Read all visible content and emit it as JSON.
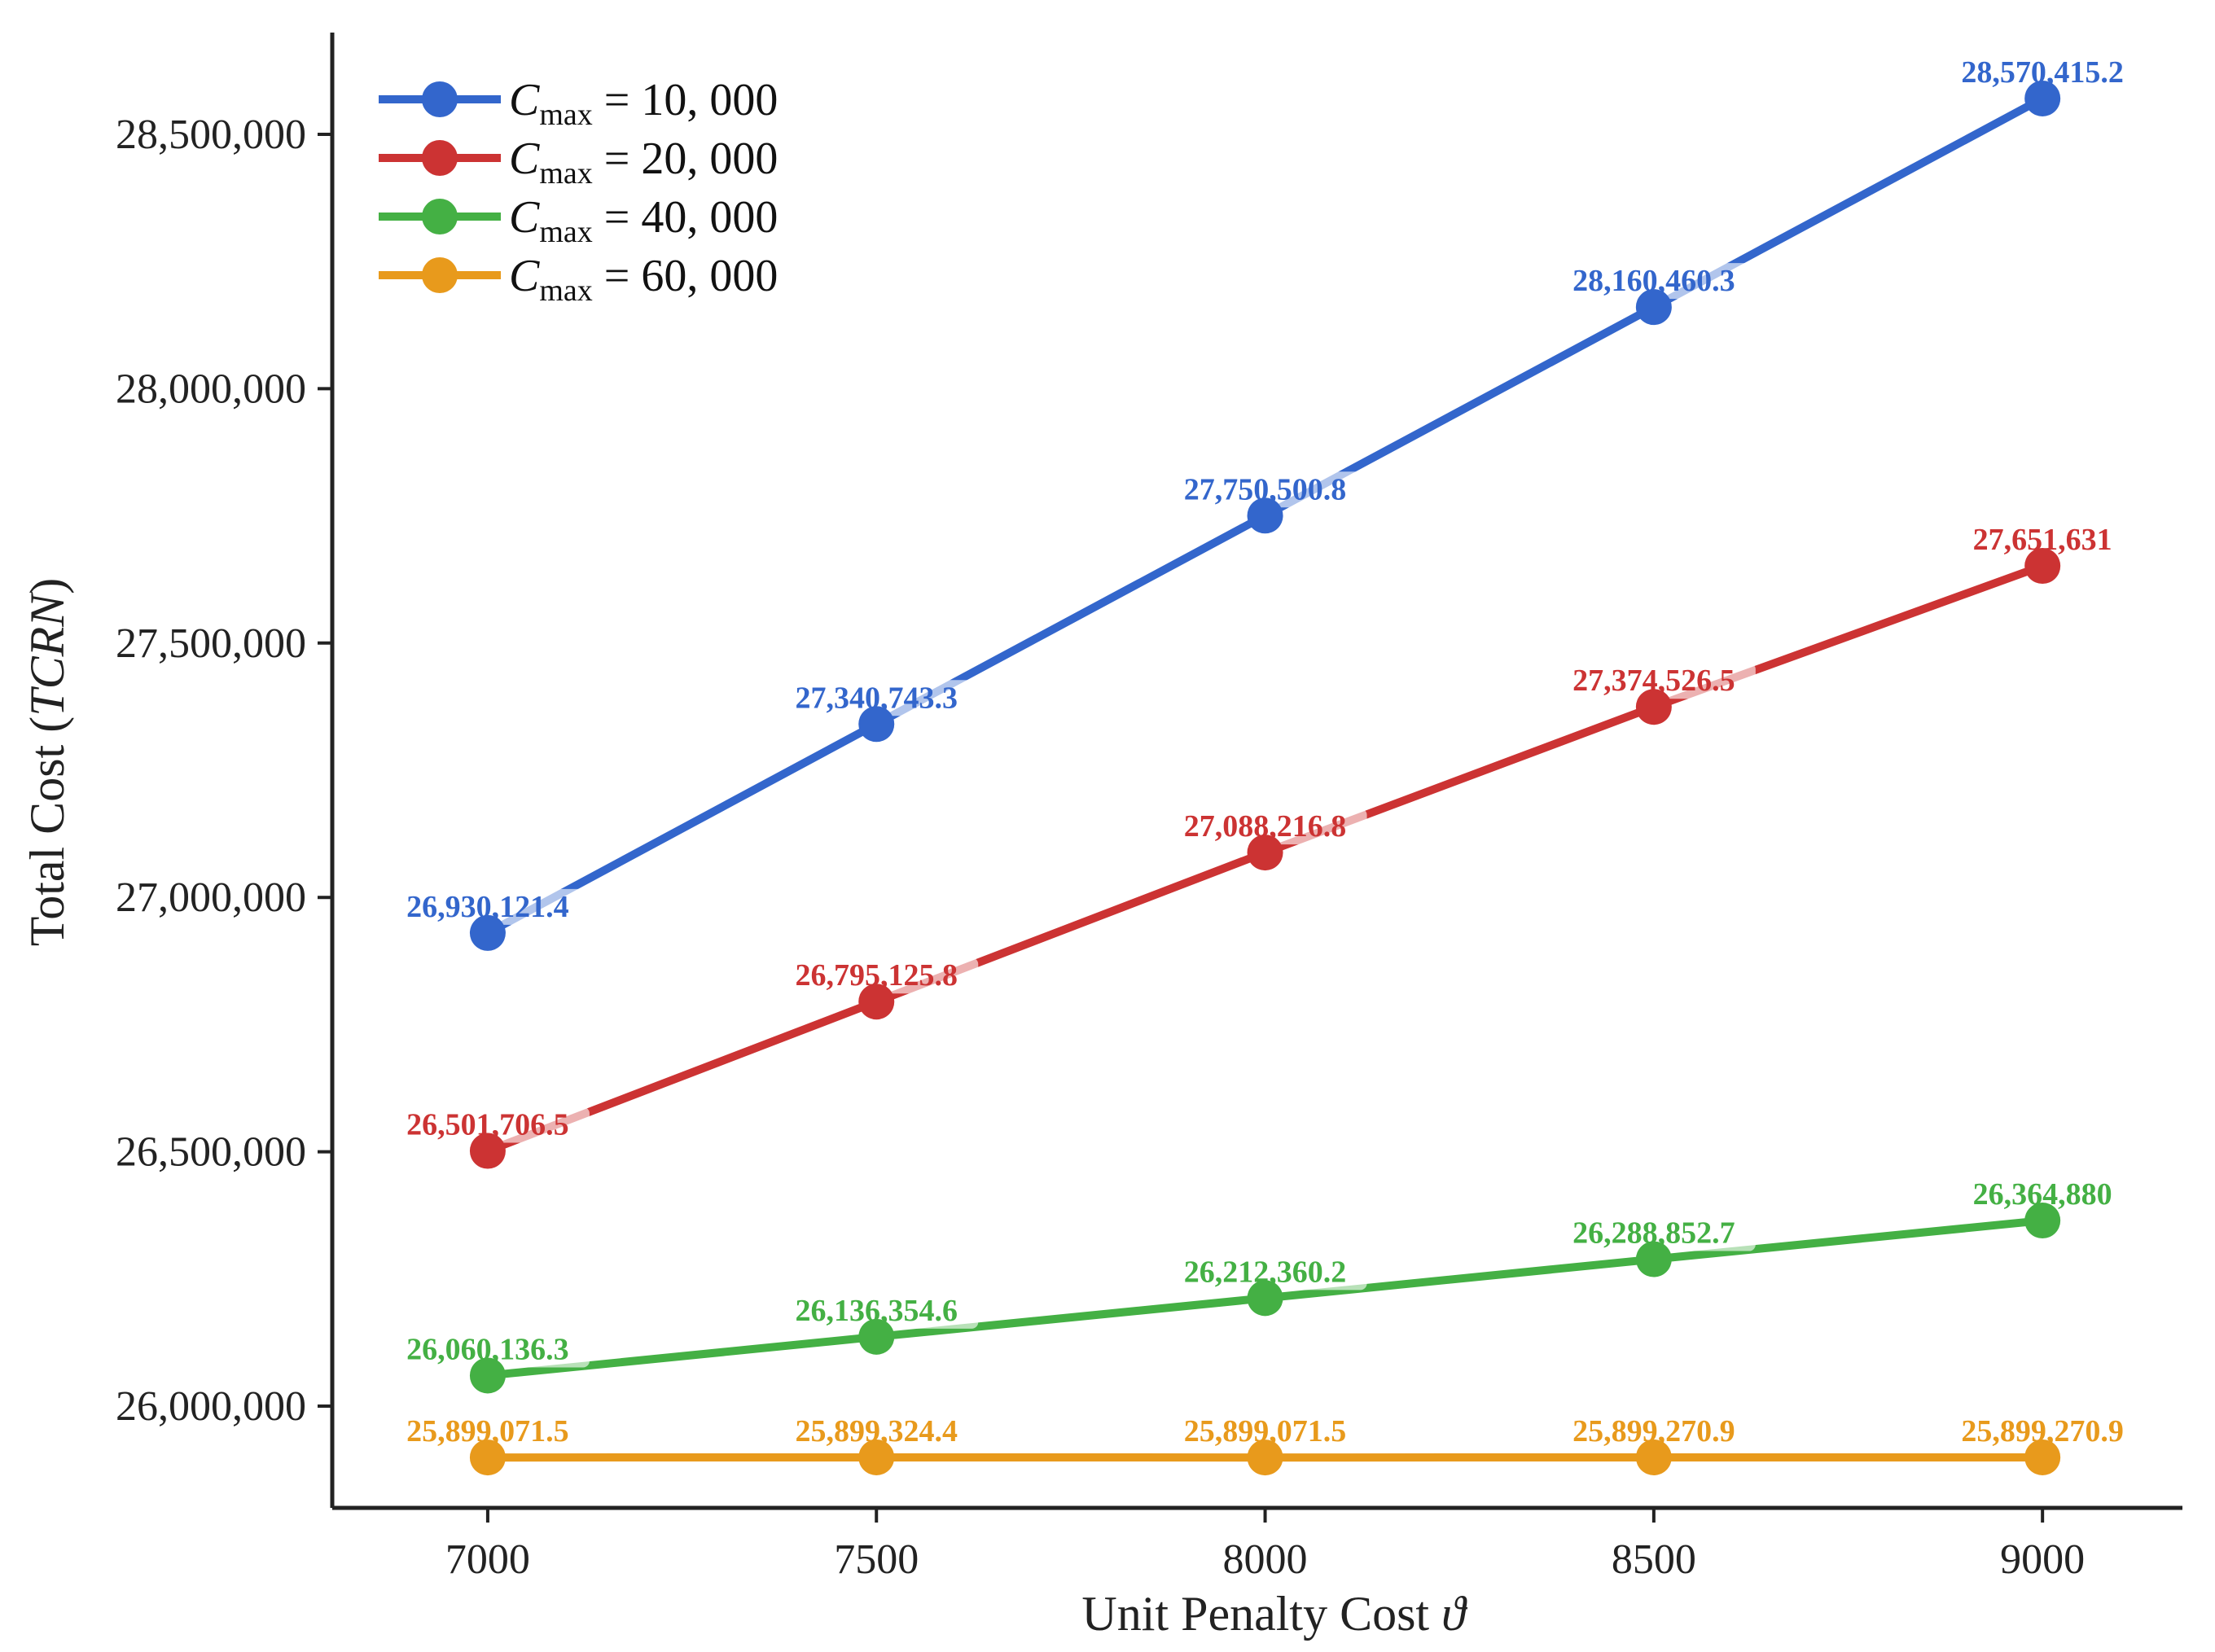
{
  "chart_data": {
    "type": "line",
    "title": "",
    "xlabel": "Unit Penalty Cost",
    "xlabel_symbol": "ϑ",
    "ylabel": "Total Cost",
    "ylabel_symbol": "TCRN",
    "x": [
      7000,
      7500,
      8000,
      8500,
      9000
    ],
    "x_tick_labels": [
      "7000",
      "7500",
      "8000",
      "8500",
      "9000"
    ],
    "xlim": [
      6800,
      9180
    ],
    "ylim": [
      25800000,
      28700000
    ],
    "y_ticks": [
      26000000,
      26500000,
      27000000,
      27500000,
      28000000,
      28500000
    ],
    "y_tick_labels": [
      "26,000,000",
      "26,500,000",
      "27,000,000",
      "27,500,000",
      "28,000,000",
      "28,500,000"
    ],
    "grid": false,
    "legend_position": "top-left",
    "series": [
      {
        "name": "C_max = 10,000",
        "legend_symbol": "C",
        "legend_subscript": "max",
        "legend_value": "= 10, 000",
        "color": "#3366cc",
        "values": [
          26930121.4,
          27340743.3,
          27750500.8,
          28160460.3,
          28570415.2
        ],
        "labels": [
          "26,930,121.4",
          "27,340,743.3",
          "27,750,500.8",
          "28,160,460.3",
          "28,570,415.2"
        ]
      },
      {
        "name": "C_max = 20,000",
        "legend_symbol": "C",
        "legend_subscript": "max",
        "legend_value": "= 20, 000",
        "color": "#cc3333",
        "values": [
          26501706.5,
          26795125.8,
          27088216.8,
          27374526.5,
          27651631
        ],
        "labels": [
          "26,501,706.5",
          "26,795,125.8",
          "27,088,216.8",
          "27,374,526.5",
          "27,651,631"
        ]
      },
      {
        "name": "C_max = 40,000",
        "legend_symbol": "C",
        "legend_subscript": "max",
        "legend_value": "= 40, 000",
        "color": "#44b044",
        "values": [
          26060136.3,
          26136354.6,
          26212360.2,
          26288852.7,
          26364880
        ],
        "labels": [
          "26,060,136.3",
          "26,136,354.6",
          "26,212,360.2",
          "26,288,852.7",
          "26,364,880"
        ]
      },
      {
        "name": "C_max = 60,000",
        "legend_symbol": "C",
        "legend_subscript": "max",
        "legend_value": "= 60, 000",
        "color": "#e89a1c",
        "values": [
          25899071.5,
          25899324.4,
          25899071.5,
          25899270.9,
          25899270.9
        ],
        "labels": [
          "25,899,071.5",
          "25,899,324.4",
          "25,899,071.5",
          "25,899,270.9",
          "25,899,270.9"
        ]
      }
    ]
  }
}
